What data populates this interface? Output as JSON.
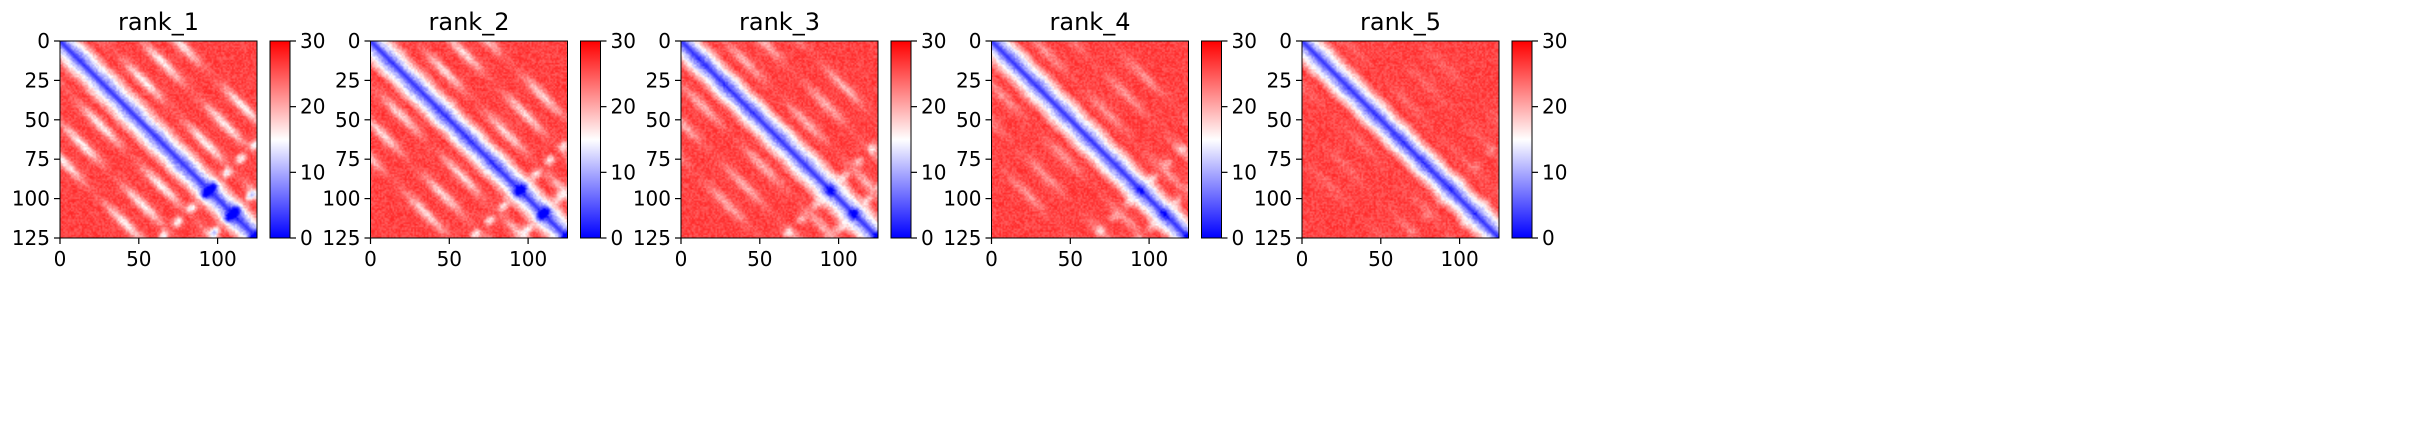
{
  "chart_data": [
    {
      "type": "heatmap",
      "title": "rank_1",
      "size": 126,
      "x_ticks": [
        0,
        50,
        100
      ],
      "y_ticks": [
        0,
        25,
        50,
        75,
        100,
        125
      ],
      "xlim": [
        0,
        125
      ],
      "ylim": [
        125,
        0
      ],
      "colorbar": {
        "min": 0,
        "max": 30,
        "ticks": [
          0,
          10,
          20,
          30
        ]
      },
      "colormap": "bwr",
      "contact_strength": 1.0
    },
    {
      "type": "heatmap",
      "title": "rank_2",
      "size": 126,
      "x_ticks": [
        0,
        50,
        100
      ],
      "y_ticks": [
        0,
        25,
        50,
        75,
        100,
        125
      ],
      "xlim": [
        0,
        125
      ],
      "ylim": [
        125,
        0
      ],
      "colorbar": {
        "min": 0,
        "max": 30,
        "ticks": [
          0,
          10,
          20,
          30
        ]
      },
      "colormap": "bwr",
      "contact_strength": 0.85
    },
    {
      "type": "heatmap",
      "title": "rank_3",
      "size": 126,
      "x_ticks": [
        0,
        50,
        100
      ],
      "y_ticks": [
        0,
        25,
        50,
        75,
        100,
        125
      ],
      "xlim": [
        0,
        125
      ],
      "ylim": [
        125,
        0
      ],
      "colorbar": {
        "min": 0,
        "max": 30,
        "ticks": [
          0,
          10,
          20,
          30
        ]
      },
      "colormap": "bwr",
      "contact_strength": 0.62
    },
    {
      "type": "heatmap",
      "title": "rank_4",
      "size": 126,
      "x_ticks": [
        0,
        50,
        100
      ],
      "y_ticks": [
        0,
        25,
        50,
        75,
        100,
        125
      ],
      "xlim": [
        0,
        125
      ],
      "ylim": [
        125,
        0
      ],
      "colorbar": {
        "min": 0,
        "max": 30,
        "ticks": [
          0,
          10,
          20,
          30
        ]
      },
      "colormap": "bwr",
      "contact_strength": 0.45
    },
    {
      "type": "heatmap",
      "title": "rank_5",
      "size": 126,
      "x_ticks": [
        0,
        50,
        100
      ],
      "y_ticks": [
        0,
        25,
        50,
        75,
        100,
        125
      ],
      "xlim": [
        0,
        125
      ],
      "ylim": [
        125,
        0
      ],
      "colorbar": {
        "min": 0,
        "max": 30,
        "ticks": [
          0,
          10,
          20,
          30
        ]
      },
      "colormap": "bwr",
      "contact_strength": 0.2
    }
  ],
  "colors": {
    "low": "#0000ff",
    "mid": "#ffffff",
    "high": "#ff0000"
  }
}
